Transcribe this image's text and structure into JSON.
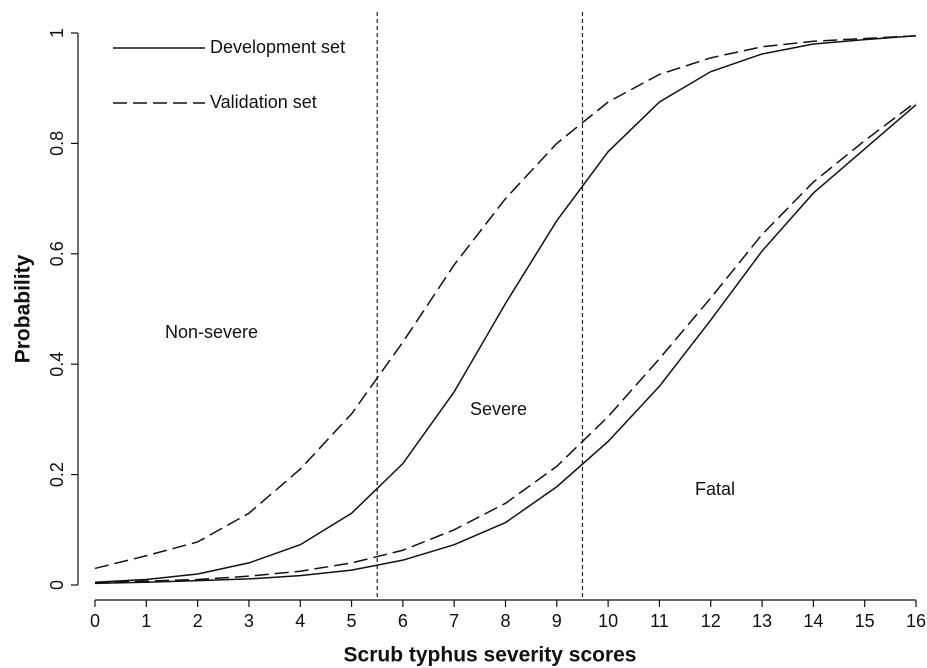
{
  "chart_data": {
    "type": "line",
    "xlabel": "Scrub typhus severity scores",
    "ylabel": "Probability",
    "x": [
      0,
      1,
      2,
      3,
      4,
      5,
      6,
      7,
      8,
      9,
      10,
      11,
      12,
      13,
      14,
      15,
      16
    ],
    "xlim": [
      0,
      16
    ],
    "xticks": [
      0,
      1,
      2,
      3,
      4,
      5,
      6,
      7,
      8,
      9,
      10,
      11,
      12,
      13,
      14,
      15,
      16
    ],
    "ylim": [
      0,
      1
    ],
    "yticks": [
      0,
      0.2,
      0.4,
      0.6,
      0.8,
      1
    ],
    "cutoffs": [
      5.5,
      9.5
    ],
    "annotations": [
      "Non-severe",
      "Severe",
      "Fatal"
    ],
    "series": [
      {
        "name": "Development set",
        "color": "#111111",
        "dashed": false,
        "curves": [
          [
            0.005,
            0.01,
            0.02,
            0.04,
            0.073,
            0.13,
            0.22,
            0.35,
            0.51,
            0.66,
            0.785,
            0.875,
            0.93,
            0.962,
            0.98,
            0.988,
            0.995
          ],
          [
            0.003,
            0.005,
            0.008,
            0.011,
            0.017,
            0.027,
            0.045,
            0.073,
            0.113,
            0.178,
            0.26,
            0.36,
            0.48,
            0.605,
            0.71,
            0.79,
            0.87
          ]
        ]
      },
      {
        "name": "Validation set",
        "color": "#111111",
        "dashed": true,
        "curves": [
          [
            0.03,
            0.053,
            0.078,
            0.13,
            0.21,
            0.31,
            0.44,
            0.58,
            0.7,
            0.8,
            0.875,
            0.925,
            0.955,
            0.975,
            0.985,
            0.99,
            0.995
          ],
          [
            0.004,
            0.007,
            0.01,
            0.016,
            0.025,
            0.04,
            0.063,
            0.1,
            0.148,
            0.215,
            0.305,
            0.41,
            0.52,
            0.635,
            0.73,
            0.805,
            0.875
          ]
        ]
      }
    ]
  }
}
